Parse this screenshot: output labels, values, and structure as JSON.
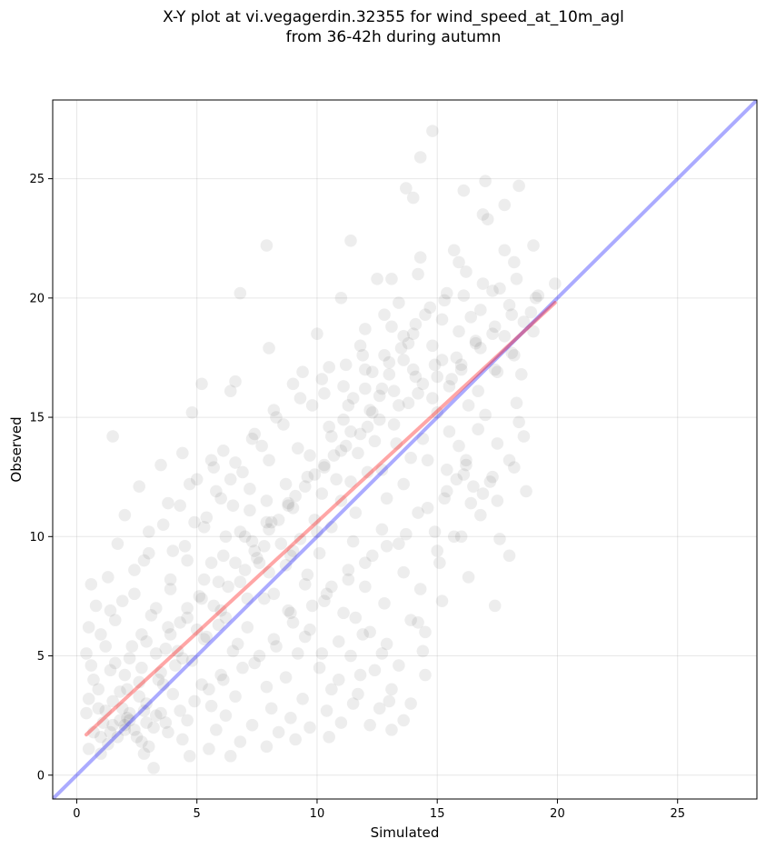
{
  "chart_data": {
    "type": "scatter",
    "title_line1": "X-Y plot at vi.vegagerdin.32355 for wind_speed_at_10m_agl",
    "title_line2": "from 36-42h during autumn",
    "xlabel": "Simulated",
    "ylabel": "Observed",
    "xlim": [
      -1,
      28.3
    ],
    "ylim": [
      -1,
      28.3
    ],
    "xticks": [
      "0",
      "5",
      "10",
      "15",
      "20",
      "25"
    ],
    "yticks": [
      "0",
      "5",
      "10",
      "15",
      "20",
      "25"
    ],
    "grid": true,
    "point_color": "#000000",
    "point_opacity": 0.07,
    "identity_line": {
      "from": [
        -1,
        -1
      ],
      "to": [
        28.3,
        28.3
      ],
      "color": "#0000ff"
    },
    "fit_line": {
      "from": [
        0.4,
        1.7
      ],
      "to": [
        19.9,
        19.8
      ],
      "color": "#ff0000"
    },
    "points": [
      [
        14.8,
        27.0
      ],
      [
        14.3,
        25.9
      ],
      [
        17.0,
        24.9
      ],
      [
        13.7,
        24.6
      ],
      [
        14.0,
        24.2
      ],
      [
        16.1,
        24.5
      ],
      [
        18.4,
        24.7
      ],
      [
        17.8,
        23.9
      ],
      [
        16.9,
        23.5
      ],
      [
        17.1,
        23.3
      ],
      [
        11.4,
        22.4
      ],
      [
        7.9,
        22.2
      ],
      [
        15.7,
        22.0
      ],
      [
        17.8,
        22.0
      ],
      [
        19.0,
        22.2
      ],
      [
        14.3,
        21.7
      ],
      [
        15.9,
        21.5
      ],
      [
        18.2,
        21.5
      ],
      [
        16.2,
        21.1
      ],
      [
        14.2,
        21.0
      ],
      [
        12.5,
        20.8
      ],
      [
        13.1,
        20.8
      ],
      [
        16.9,
        20.6
      ],
      [
        19.9,
        20.6
      ],
      [
        15.4,
        20.2
      ],
      [
        17.3,
        20.3
      ],
      [
        11.0,
        20.0
      ],
      [
        6.8,
        20.2
      ],
      [
        19.1,
        20.0
      ],
      [
        13.4,
        19.8
      ],
      [
        14.7,
        19.6
      ],
      [
        18.0,
        19.7
      ],
      [
        12.8,
        19.3
      ],
      [
        15.2,
        19.1
      ],
      [
        16.4,
        19.2
      ],
      [
        13.1,
        18.8
      ],
      [
        12.0,
        18.7
      ],
      [
        18.6,
        19.0
      ],
      [
        10.0,
        18.5
      ],
      [
        14.0,
        18.5
      ],
      [
        15.9,
        18.6
      ],
      [
        17.3,
        18.5
      ],
      [
        11.8,
        18.0
      ],
      [
        14.8,
        18.0
      ],
      [
        16.8,
        17.9
      ],
      [
        18.1,
        17.7
      ],
      [
        8.0,
        17.9
      ],
      [
        13.6,
        17.4
      ],
      [
        11.2,
        17.2
      ],
      [
        16.0,
        17.0
      ],
      [
        12.3,
        16.9
      ],
      [
        17.4,
        17.0
      ],
      [
        14.1,
        16.7
      ],
      [
        18.5,
        16.8
      ],
      [
        6.6,
        16.5
      ],
      [
        9.0,
        16.4
      ],
      [
        15.5,
        16.3
      ],
      [
        12.7,
        16.2
      ],
      [
        5.2,
        16.4
      ],
      [
        6.4,
        16.1
      ],
      [
        10.3,
        16.0
      ],
      [
        11.5,
        15.8
      ],
      [
        13.8,
        15.6
      ],
      [
        16.3,
        15.5
      ],
      [
        18.3,
        15.6
      ],
      [
        9.8,
        15.5
      ],
      [
        12.2,
        15.3
      ],
      [
        15.0,
        15.2
      ],
      [
        17.0,
        15.1
      ],
      [
        4.8,
        15.2
      ],
      [
        8.3,
        15.0
      ],
      [
        11.1,
        14.9
      ],
      [
        13.2,
        14.7
      ],
      [
        16.7,
        14.5
      ],
      [
        18.4,
        14.8
      ],
      [
        1.5,
        14.2
      ],
      [
        7.4,
        14.3
      ],
      [
        10.6,
        14.2
      ],
      [
        12.4,
        14.0
      ],
      [
        14.4,
        14.1
      ],
      [
        15.9,
        13.8
      ],
      [
        17.5,
        13.9
      ],
      [
        6.1,
        13.6
      ],
      [
        9.2,
        13.7
      ],
      [
        11.7,
        13.5
      ],
      [
        13.9,
        13.3
      ],
      [
        16.2,
        13.2
      ],
      [
        18.2,
        12.9
      ],
      [
        4.4,
        13.5
      ],
      [
        8.0,
        13.2
      ],
      [
        10.3,
        13.0
      ],
      [
        12.7,
        12.8
      ],
      [
        15.4,
        12.8
      ],
      [
        17.3,
        12.5
      ],
      [
        3.5,
        13.0
      ],
      [
        5.7,
        12.9
      ],
      [
        9.6,
        12.5
      ],
      [
        11.4,
        12.3
      ],
      [
        13.6,
        12.2
      ],
      [
        16.5,
        12.1
      ],
      [
        18.7,
        11.9
      ],
      [
        2.6,
        12.1
      ],
      [
        4.7,
        12.2
      ],
      [
        7.2,
        12.0
      ],
      [
        10.2,
        11.8
      ],
      [
        12.9,
        11.6
      ],
      [
        15.3,
        11.6
      ],
      [
        17.5,
        11.5
      ],
      [
        3.8,
        11.4
      ],
      [
        6.5,
        11.3
      ],
      [
        8.8,
        11.3
      ],
      [
        11.6,
        11.0
      ],
      [
        14.2,
        11.0
      ],
      [
        16.8,
        10.9
      ],
      [
        2.0,
        10.9
      ],
      [
        5.4,
        10.8
      ],
      [
        7.9,
        10.6
      ],
      [
        10.6,
        10.4
      ],
      [
        12.7,
        10.3
      ],
      [
        14.9,
        10.2
      ],
      [
        3.0,
        10.2
      ],
      [
        6.2,
        10.0
      ],
      [
        9.3,
        9.9
      ],
      [
        11.5,
        9.8
      ],
      [
        13.4,
        9.7
      ],
      [
        16.0,
        10.0
      ],
      [
        17.6,
        9.9
      ],
      [
        1.7,
        9.7
      ],
      [
        4.5,
        9.6
      ],
      [
        7.4,
        9.4
      ],
      [
        10.1,
        9.3
      ],
      [
        12.3,
        9.2
      ],
      [
        15.0,
        9.4
      ],
      [
        18.0,
        9.2
      ],
      [
        2.8,
        9.0
      ],
      [
        5.6,
        8.9
      ],
      [
        8.7,
        8.8
      ],
      [
        11.3,
        8.6
      ],
      [
        13.6,
        8.5
      ],
      [
        16.3,
        8.3
      ],
      [
        1.3,
        8.3
      ],
      [
        3.9,
        8.2
      ],
      [
        6.8,
        8.1
      ],
      [
        9.5,
        8.0
      ],
      [
        12.0,
        7.9
      ],
      [
        14.3,
        7.8
      ],
      [
        0.6,
        8.0
      ],
      [
        2.4,
        7.6
      ],
      [
        5.1,
        7.5
      ],
      [
        7.8,
        7.4
      ],
      [
        10.3,
        7.3
      ],
      [
        12.8,
        7.2
      ],
      [
        15.2,
        7.3
      ],
      [
        17.4,
        7.1
      ],
      [
        0.8,
        7.1
      ],
      [
        3.3,
        7.0
      ],
      [
        6.0,
        6.9
      ],
      [
        8.9,
        6.8
      ],
      [
        11.6,
        6.6
      ],
      [
        13.9,
        6.5
      ],
      [
        1.6,
        6.5
      ],
      [
        4.3,
        6.4
      ],
      [
        7.1,
        6.2
      ],
      [
        9.7,
        6.1
      ],
      [
        12.2,
        6.0
      ],
      [
        14.5,
        6.0
      ],
      [
        0.5,
        6.2
      ],
      [
        2.7,
        5.9
      ],
      [
        5.4,
        5.8
      ],
      [
        8.2,
        5.7
      ],
      [
        10.9,
        5.6
      ],
      [
        12.9,
        5.5
      ],
      [
        1.2,
        5.4
      ],
      [
        3.7,
        5.3
      ],
      [
        6.5,
        5.2
      ],
      [
        9.2,
        5.1
      ],
      [
        11.4,
        5.0
      ],
      [
        14.4,
        5.2
      ],
      [
        0.4,
        5.1
      ],
      [
        2.2,
        4.9
      ],
      [
        4.8,
        4.8
      ],
      [
        7.4,
        4.7
      ],
      [
        10.1,
        4.5
      ],
      [
        12.4,
        4.4
      ],
      [
        1.4,
        4.4
      ],
      [
        3.5,
        4.3
      ],
      [
        6.0,
        4.2
      ],
      [
        8.7,
        4.1
      ],
      [
        11.8,
        4.2
      ],
      [
        14.5,
        4.2
      ],
      [
        0.7,
        4.0
      ],
      [
        2.6,
        3.9
      ],
      [
        5.2,
        3.8
      ],
      [
        7.9,
        3.7
      ],
      [
        10.6,
        3.6
      ],
      [
        13.1,
        3.6
      ],
      [
        1.8,
        3.5
      ],
      [
        4.0,
        3.4
      ],
      [
        6.6,
        3.3
      ],
      [
        9.4,
        3.2
      ],
      [
        11.5,
        3.0
      ],
      [
        0.5,
        3.2
      ],
      [
        2.9,
        3.0
      ],
      [
        5.6,
        2.9
      ],
      [
        8.1,
        2.8
      ],
      [
        10.4,
        2.7
      ],
      [
        13.0,
        3.1
      ],
      [
        1.2,
        2.7
      ],
      [
        3.5,
        2.6
      ],
      [
        6.2,
        2.5
      ],
      [
        8.9,
        2.4
      ],
      [
        11.0,
        2.2
      ],
      [
        13.6,
        2.3
      ],
      [
        0.4,
        2.6
      ],
      [
        2.1,
        2.4
      ],
      [
        4.6,
        2.3
      ],
      [
        7.3,
        2.1
      ],
      [
        9.7,
        2.0
      ],
      [
        12.2,
        2.1
      ],
      [
        1.5,
        2.1
      ],
      [
        3.2,
        2.0
      ],
      [
        5.8,
        1.9
      ],
      [
        8.4,
        1.8
      ],
      [
        10.5,
        1.6
      ],
      [
        13.1,
        1.9
      ],
      [
        0.7,
        1.8
      ],
      [
        2.5,
        1.6
      ],
      [
        4.4,
        1.5
      ],
      [
        6.8,
        1.4
      ],
      [
        9.1,
        1.5
      ],
      [
        1.3,
        1.3
      ],
      [
        3.0,
        1.2
      ],
      [
        5.5,
        1.1
      ],
      [
        7.9,
        1.2
      ],
      [
        1.0,
        0.9
      ],
      [
        2.8,
        0.9
      ],
      [
        4.7,
        0.8
      ],
      [
        6.4,
        0.8
      ],
      [
        3.2,
        0.3
      ],
      [
        0.5,
        1.1
      ],
      [
        2.0,
        1.9
      ],
      [
        1.9,
        2.8
      ],
      [
        3.7,
        2.2
      ],
      [
        4.1,
        4.6
      ],
      [
        5.9,
        6.3
      ],
      [
        6.7,
        5.5
      ],
      [
        7.6,
        8.9
      ],
      [
        8.5,
        9.7
      ],
      [
        9.0,
        11.2
      ],
      [
        9.9,
        10.7
      ],
      [
        10.8,
        12.4
      ],
      [
        11.2,
        13.8
      ],
      [
        12.1,
        14.6
      ],
      [
        12.6,
        15.9
      ],
      [
        13.0,
        16.8
      ],
      [
        13.5,
        17.9
      ],
      [
        14.1,
        18.9
      ],
      [
        14.9,
        17.2
      ],
      [
        15.6,
        16.6
      ],
      [
        16.6,
        18.2
      ],
      [
        17.8,
        18.4
      ],
      [
        18.9,
        19.4
      ],
      [
        2.3,
        5.4
      ],
      [
        3.1,
        6.7
      ],
      [
        3.9,
        7.8
      ],
      [
        4.6,
        9.0
      ],
      [
        5.3,
        10.4
      ],
      [
        6.0,
        11.6
      ],
      [
        6.9,
        12.7
      ],
      [
        7.7,
        13.8
      ],
      [
        8.6,
        14.7
      ],
      [
        9.4,
        16.9
      ],
      [
        10.5,
        17.1
      ],
      [
        11.9,
        17.6
      ],
      [
        0.9,
        3.6
      ],
      [
        1.6,
        4.7
      ],
      [
        2.2,
        2.3
      ],
      [
        2.6,
        3.3
      ],
      [
        3.4,
        4.0
      ],
      [
        4.2,
        5.2
      ],
      [
        5.0,
        6.1
      ],
      [
        5.7,
        7.1
      ],
      [
        6.3,
        7.9
      ],
      [
        7.0,
        8.6
      ],
      [
        7.8,
        9.6
      ],
      [
        8.4,
        10.7
      ],
      [
        9.1,
        11.7
      ],
      [
        9.9,
        12.6
      ],
      [
        10.7,
        13.4
      ],
      [
        11.4,
        14.4
      ],
      [
        12.3,
        15.2
      ],
      [
        13.2,
        16.1
      ],
      [
        14.0,
        17.0
      ],
      [
        14.8,
        15.8
      ],
      [
        15.5,
        14.4
      ],
      [
        16.2,
        13.0
      ],
      [
        16.9,
        11.8
      ],
      [
        15.8,
        12.4
      ],
      [
        14.6,
        13.2
      ],
      [
        13.3,
        13.9
      ],
      [
        12.1,
        12.7
      ],
      [
        11.0,
        11.5
      ],
      [
        10.0,
        10.2
      ],
      [
        9.0,
        9.4
      ],
      [
        8.0,
        8.5
      ],
      [
        7.1,
        7.4
      ],
      [
        6.2,
        6.6
      ],
      [
        5.3,
        5.7
      ],
      [
        4.4,
        4.9
      ],
      [
        3.6,
        3.8
      ],
      [
        2.8,
        2.7
      ],
      [
        2.0,
        2.1
      ],
      [
        1.4,
        1.8
      ],
      [
        1.8,
        2.3
      ],
      [
        2.4,
        1.9
      ],
      [
        1.1,
        2.2
      ],
      [
        1.7,
        1.6
      ],
      [
        2.2,
        2.6
      ],
      [
        2.9,
        2.2
      ],
      [
        1.0,
        1.6
      ],
      [
        3.3,
        2.5
      ],
      [
        2.7,
        1.4
      ],
      [
        3.8,
        1.8
      ],
      [
        4.3,
        2.7
      ],
      [
        4.9,
        3.1
      ],
      [
        5.5,
        3.6
      ],
      [
        6.1,
        4.0
      ],
      [
        6.9,
        4.5
      ],
      [
        7.6,
        5.0
      ],
      [
        8.3,
        5.4
      ],
      [
        9.0,
        6.4
      ],
      [
        9.8,
        7.1
      ],
      [
        10.6,
        7.9
      ],
      [
        11.3,
        8.2
      ],
      [
        12.0,
        8.9
      ],
      [
        12.9,
        9.6
      ],
      [
        13.7,
        10.1
      ],
      [
        14.6,
        11.2
      ],
      [
        15.4,
        11.9
      ],
      [
        16.1,
        12.6
      ],
      [
        4.0,
        9.4
      ],
      [
        4.9,
        10.6
      ],
      [
        5.8,
        11.9
      ],
      [
        6.6,
        13.1
      ],
      [
        7.3,
        14.1
      ],
      [
        8.2,
        15.3
      ],
      [
        9.3,
        15.8
      ],
      [
        10.2,
        16.6
      ],
      [
        11.1,
        16.3
      ],
      [
        12.0,
        17.0
      ],
      [
        13.0,
        17.3
      ],
      [
        13.8,
        18.1
      ],
      [
        14.5,
        19.3
      ],
      [
        15.3,
        19.9
      ],
      [
        16.1,
        20.1
      ],
      [
        16.8,
        19.5
      ],
      [
        17.6,
        20.4
      ],
      [
        18.3,
        20.8
      ],
      [
        19.2,
        20.1
      ],
      [
        0.6,
        4.6
      ],
      [
        1.0,
        5.9
      ],
      [
        1.4,
        6.9
      ],
      [
        1.9,
        7.3
      ],
      [
        2.4,
        8.6
      ],
      [
        3.0,
        9.3
      ],
      [
        3.6,
        10.5
      ],
      [
        4.3,
        11.3
      ],
      [
        5.0,
        12.4
      ],
      [
        5.6,
        13.2
      ],
      [
        6.4,
        12.4
      ],
      [
        7.2,
        11.1
      ],
      [
        8.0,
        10.3
      ],
      [
        8.9,
        9.2
      ],
      [
        9.6,
        8.4
      ],
      [
        10.4,
        7.6
      ],
      [
        11.1,
        6.8
      ],
      [
        11.9,
        5.9
      ],
      [
        12.7,
        5.1
      ],
      [
        13.4,
        4.6
      ],
      [
        6.8,
        10.2
      ],
      [
        7.5,
        9.1
      ],
      [
        8.2,
        7.6
      ],
      [
        8.8,
        6.9
      ],
      [
        9.5,
        5.8
      ],
      [
        10.2,
        5.1
      ],
      [
        10.9,
        4.0
      ],
      [
        11.7,
        3.4
      ],
      [
        12.6,
        2.8
      ],
      [
        13.9,
        3.0
      ],
      [
        14.2,
        6.4
      ],
      [
        15.1,
        8.9
      ],
      [
        15.7,
        10.0
      ],
      [
        16.4,
        11.4
      ],
      [
        17.2,
        12.3
      ],
      [
        18.0,
        13.2
      ],
      [
        18.6,
        14.2
      ],
      [
        2.0,
        4.2
      ],
      [
        2.9,
        5.6
      ],
      [
        3.8,
        6.2
      ],
      [
        4.6,
        7.0
      ],
      [
        5.3,
        8.2
      ],
      [
        6.1,
        9.2
      ],
      [
        7.0,
        10.0
      ],
      [
        7.9,
        11.5
      ],
      [
        8.7,
        12.2
      ],
      [
        9.7,
        13.4
      ],
      [
        10.5,
        14.6
      ],
      [
        11.3,
        15.5
      ],
      [
        12.0,
        16.2
      ],
      [
        12.8,
        17.6
      ],
      [
        13.6,
        18.4
      ],
      [
        14.4,
        16.4
      ],
      [
        15.2,
        17.4
      ],
      [
        16.0,
        17.2
      ],
      [
        16.7,
        16.1
      ],
      [
        17.5,
        16.9
      ],
      [
        18.2,
        17.6
      ],
      [
        19.0,
        18.6
      ],
      [
        0.9,
        2.8
      ],
      [
        1.5,
        3.1
      ],
      [
        2.1,
        3.6
      ],
      [
        2.7,
        4.5
      ],
      [
        3.3,
        5.1
      ],
      [
        3.9,
        5.9
      ],
      [
        4.6,
        6.6
      ],
      [
        5.2,
        7.4
      ],
      [
        5.9,
        8.1
      ],
      [
        6.6,
        8.9
      ],
      [
        7.3,
        9.8
      ],
      [
        8.1,
        10.6
      ],
      [
        8.8,
        11.4
      ],
      [
        9.5,
        12.1
      ],
      [
        10.3,
        12.9
      ],
      [
        11.0,
        13.6
      ],
      [
        11.8,
        14.3
      ],
      [
        12.6,
        14.9
      ],
      [
        13.4,
        15.5
      ],
      [
        14.2,
        16.0
      ],
      [
        15.0,
        16.7
      ],
      [
        15.8,
        17.5
      ],
      [
        16.6,
        18.1
      ],
      [
        17.4,
        18.8
      ],
      [
        18.1,
        19.3
      ]
    ]
  }
}
